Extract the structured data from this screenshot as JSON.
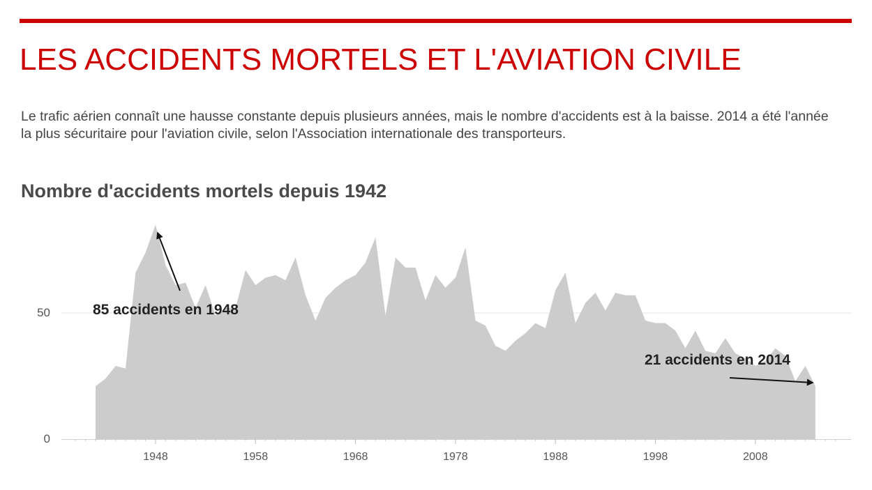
{
  "header": {
    "title": "LES ACCIDENTS MORTELS ET L'AVIATION CIVILE",
    "intro": "Le trafic aérien connaît une hausse constante depuis plusieurs années, mais le nombre d'accidents est à la baisse. 2014 a été l'année la plus sécuritaire pour l'aviation civile, selon l'Association internationale des transporteurs.",
    "accent_color": "#cc0000"
  },
  "chart_data": {
    "type": "area",
    "title": "Nombre d'accidents mortels depuis 1942",
    "xlabel": "",
    "ylabel": "",
    "x": [
      1942,
      1943,
      1944,
      1945,
      1946,
      1947,
      1948,
      1949,
      1950,
      1951,
      1952,
      1953,
      1954,
      1955,
      1956,
      1957,
      1958,
      1959,
      1960,
      1961,
      1962,
      1963,
      1964,
      1965,
      1966,
      1967,
      1968,
      1969,
      1970,
      1971,
      1972,
      1973,
      1974,
      1975,
      1976,
      1977,
      1978,
      1979,
      1980,
      1981,
      1982,
      1983,
      1984,
      1985,
      1986,
      1987,
      1988,
      1989,
      1990,
      1991,
      1992,
      1993,
      1994,
      1995,
      1996,
      1997,
      1998,
      1999,
      2000,
      2001,
      2002,
      2003,
      2004,
      2005,
      2006,
      2007,
      2008,
      2009,
      2010,
      2011,
      2012,
      2013,
      2014
    ],
    "values": [
      21,
      24,
      29,
      28,
      66,
      74,
      85,
      69,
      61,
      62,
      52,
      61,
      49,
      52,
      52,
      67,
      61,
      64,
      65,
      63,
      72,
      57,
      47,
      56,
      60,
      63,
      65,
      70,
      80,
      49,
      72,
      68,
      68,
      55,
      65,
      60,
      64,
      76,
      47,
      45,
      37,
      35,
      39,
      42,
      46,
      44,
      59,
      66,
      46,
      54,
      58,
      51,
      58,
      57,
      57,
      47,
      46,
      46,
      43,
      36,
      43,
      35,
      34,
      40,
      34,
      32,
      29,
      31,
      36,
      33,
      23,
      29,
      21
    ],
    "xticks": [
      "1948",
      "1958",
      "1968",
      "1978",
      "1988",
      "1998",
      "2008"
    ],
    "xtick_values": [
      1948,
      1958,
      1968,
      1978,
      1988,
      1998,
      2008
    ],
    "yticks": [
      "0",
      "50"
    ],
    "ytick_values": [
      0,
      50
    ],
    "xlim": [
      1936,
      2018
    ],
    "ylim": [
      0,
      87
    ],
    "grid": "horizontal at 50",
    "fill_color": "#cccccc",
    "annotations": [
      {
        "text": "85 accidents en 1948",
        "year": 1948,
        "value": 85
      },
      {
        "text": "21 accidents en 2014",
        "year": 2014,
        "value": 21
      }
    ]
  }
}
